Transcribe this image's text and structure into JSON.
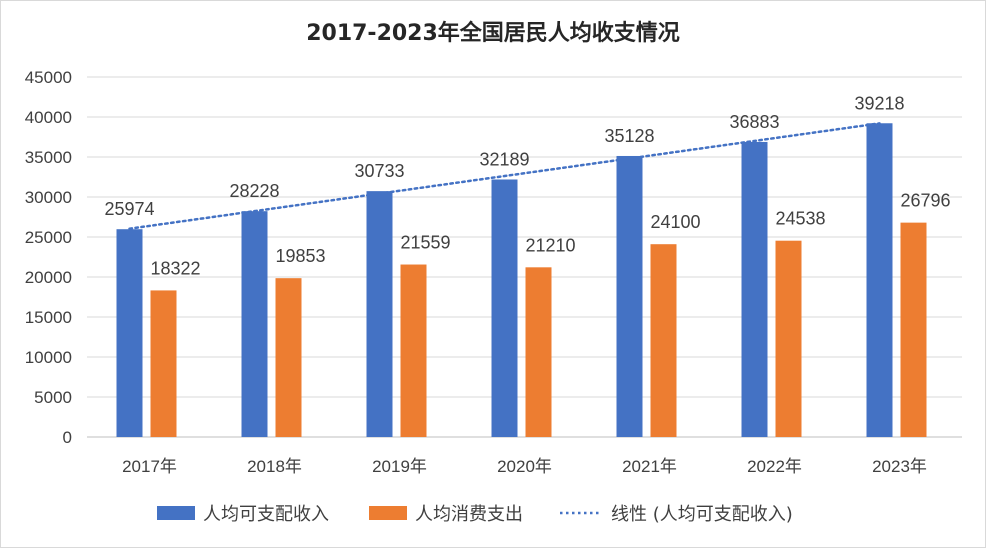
{
  "chart_data": {
    "type": "bar",
    "title": "2017-2023年全国居民人均收支情况",
    "categories": [
      "2017年",
      "2018年",
      "2019年",
      "2020年",
      "2021年",
      "2022年",
      "2023年"
    ],
    "series": [
      {
        "name": "人均可支配收入",
        "values": [
          25974,
          28228,
          30733,
          32189,
          35128,
          36883,
          39218
        ],
        "color": "#4472C4"
      },
      {
        "name": "人均消费支出",
        "values": [
          18322,
          19853,
          21559,
          21210,
          24100,
          24538,
          26796
        ],
        "color": "#ED7D31"
      }
    ],
    "trendline": {
      "name": "线性 (人均可支配收入)",
      "type": "linear",
      "of_series": "人均可支配收入",
      "style": "dotted",
      "color": "#4472C4"
    },
    "ylim": [
      0,
      45000
    ],
    "yticks": [
      0,
      5000,
      10000,
      15000,
      20000,
      25000,
      30000,
      35000,
      40000,
      45000
    ],
    "grid": true,
    "legend_position": "bottom",
    "xlabel": "",
    "ylabel": ""
  }
}
